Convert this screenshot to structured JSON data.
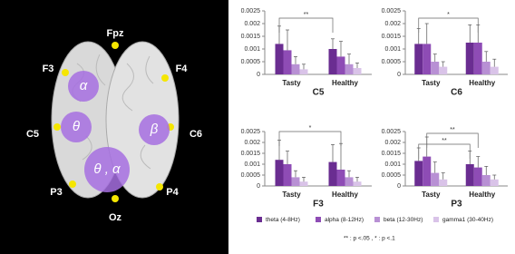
{
  "diagram": {
    "electrodes": [
      "Fpz",
      "F3",
      "F4",
      "C5",
      "C6",
      "P3",
      "P4",
      "Oz"
    ],
    "bands": [
      "α",
      "θ",
      "β",
      "θ , α"
    ]
  },
  "chart_data": [
    {
      "type": "bar",
      "title": "C5",
      "categories": [
        "Tasty",
        "Healthy"
      ],
      "ylim": [
        0,
        0.0025
      ],
      "yticks": [
        0,
        0.0005,
        0.001,
        0.0015,
        0.002,
        0.0025
      ],
      "series": [
        {
          "name": "theta (4-8Hz)",
          "color": "#6a2d91",
          "values": [
            0.0012,
            0.001
          ],
          "errors": [
            0.0007,
            0.0004
          ]
        },
        {
          "name": "alpha (8-12Hz)",
          "color": "#8e4cb5",
          "values": [
            0.00095,
            0.0007
          ],
          "errors": [
            0.0008,
            0.0006
          ]
        },
        {
          "name": "beta  (12-30Hz)",
          "color": "#b890d4",
          "values": [
            0.0004,
            0.0004
          ],
          "errors": [
            0.0003,
            0.0004
          ]
        },
        {
          "name": "gamma1 (30-40Hz)",
          "color": "#d9c3e8",
          "values": [
            0.0002,
            0.00025
          ],
          "errors": [
            0.0002,
            0.0002
          ]
        }
      ],
      "annotations": [
        "**"
      ]
    },
    {
      "type": "bar",
      "title": "C6",
      "categories": [
        "Tasty",
        "Healthy"
      ],
      "ylim": [
        0,
        0.0025
      ],
      "yticks": [
        0,
        0.0005,
        0.001,
        0.0015,
        0.002,
        0.0025
      ],
      "series": [
        {
          "color": "#6a2d91",
          "values": [
            0.0012,
            0.00125
          ],
          "errors": [
            0.0006,
            0.0007
          ]
        },
        {
          "color": "#8e4cb5",
          "values": [
            0.0012,
            0.00125
          ],
          "errors": [
            0.0008,
            0.0007
          ]
        },
        {
          "color": "#b890d4",
          "values": [
            0.0005,
            0.0005
          ],
          "errors": [
            0.0003,
            0.0004
          ]
        },
        {
          "color": "#d9c3e8",
          "values": [
            0.0003,
            0.0003
          ],
          "errors": [
            0.0002,
            0.0003
          ]
        }
      ],
      "annotations": [
        "*"
      ]
    },
    {
      "type": "bar",
      "title": "F3",
      "categories": [
        "Tasty",
        "Healthy"
      ],
      "ylim": [
        0,
        0.0025
      ],
      "yticks": [
        0,
        0.0005,
        0.001,
        0.0015,
        0.002,
        0.0025
      ],
      "series": [
        {
          "color": "#6a2d91",
          "values": [
            0.0012,
            0.0011
          ],
          "errors": [
            0.0009,
            0.0008
          ]
        },
        {
          "color": "#8e4cb5",
          "values": [
            0.001,
            0.00075
          ],
          "errors": [
            0.0006,
            0.0012
          ]
        },
        {
          "color": "#b890d4",
          "values": [
            0.0004,
            0.0004
          ],
          "errors": [
            0.0003,
            0.0003
          ]
        },
        {
          "color": "#d9c3e8",
          "values": [
            0.0002,
            0.0002
          ],
          "errors": [
            0.0002,
            0.0002
          ]
        }
      ],
      "annotations": [
        "*"
      ]
    },
    {
      "type": "bar",
      "title": "P3",
      "categories": [
        "Tasty",
        "Healthy"
      ],
      "ylim": [
        0,
        0.0025
      ],
      "yticks": [
        0,
        0.0005,
        0.001,
        0.0015,
        0.002,
        0.0025
      ],
      "series": [
        {
          "color": "#6a2d91",
          "values": [
            0.00115,
            0.001
          ],
          "errors": [
            0.0006,
            0.0006
          ]
        },
        {
          "color": "#8e4cb5",
          "values": [
            0.00135,
            0.00085
          ],
          "errors": [
            0.0009,
            0.0005
          ]
        },
        {
          "color": "#b890d4",
          "values": [
            0.0006,
            0.0005
          ],
          "errors": [
            0.0005,
            0.0004
          ]
        },
        {
          "color": "#d9c3e8",
          "values": [
            0.0003,
            0.0003
          ],
          "errors": [
            0.0003,
            0.0002
          ]
        }
      ],
      "annotations": [
        "**",
        "**"
      ]
    }
  ],
  "footnote": "** : p <.05 ,  * : p <.1"
}
